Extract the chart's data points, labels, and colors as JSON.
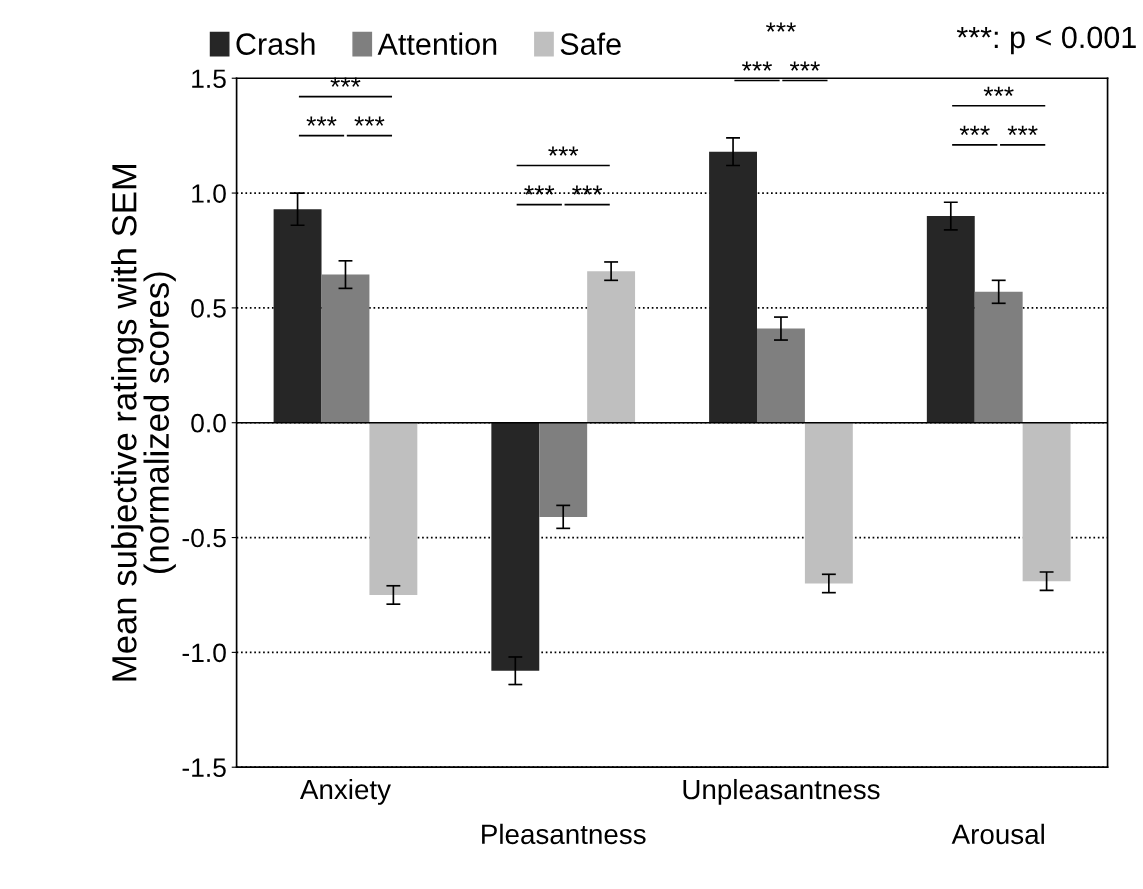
{
  "chart_data": {
    "type": "bar",
    "ylabel": "Mean subjective ratings with SEM\n(normalized scores)",
    "categories": [
      "Anxiety",
      "Pleasantness",
      "Unpleasantness",
      "Arousal"
    ],
    "series": [
      {
        "name": "Crash",
        "color": "#262626",
        "values": [
          0.93,
          -1.08,
          1.18,
          0.9
        ],
        "errors": [
          0.07,
          0.06,
          0.06,
          0.06
        ]
      },
      {
        "name": "Attention",
        "color": "#7f7f7f",
        "values": [
          0.645,
          -0.41,
          0.41,
          0.57
        ],
        "errors": [
          0.06,
          0.05,
          0.05,
          0.05
        ]
      },
      {
        "name": "Safe",
        "color": "#bfbfbf",
        "values": [
          -0.75,
          0.66,
          -0.7,
          -0.69
        ],
        "errors": [
          0.04,
          0.04,
          0.04,
          0.04
        ]
      }
    ],
    "ylim": [
      -1.5,
      1.5
    ],
    "yticks": [
      {
        "value": -1.5,
        "label": "-1.5"
      },
      {
        "value": -1.0,
        "label": "-1.0"
      },
      {
        "value": -0.5,
        "label": "-0.5"
      },
      {
        "value": 0,
        "label": "0.0"
      },
      {
        "value": 0.5,
        "label": "0.5"
      },
      {
        "value": 1.0,
        "label": "1.0"
      },
      {
        "value": 1.5,
        "label": "1.5"
      }
    ],
    "grid": "y",
    "legend": "top",
    "annotations": [
      "***",
      "***",
      "***",
      "***",
      "***",
      "***",
      "***",
      "***",
      "***",
      "***",
      "***",
      "***",
      "***: p < 0.001"
    ]
  }
}
